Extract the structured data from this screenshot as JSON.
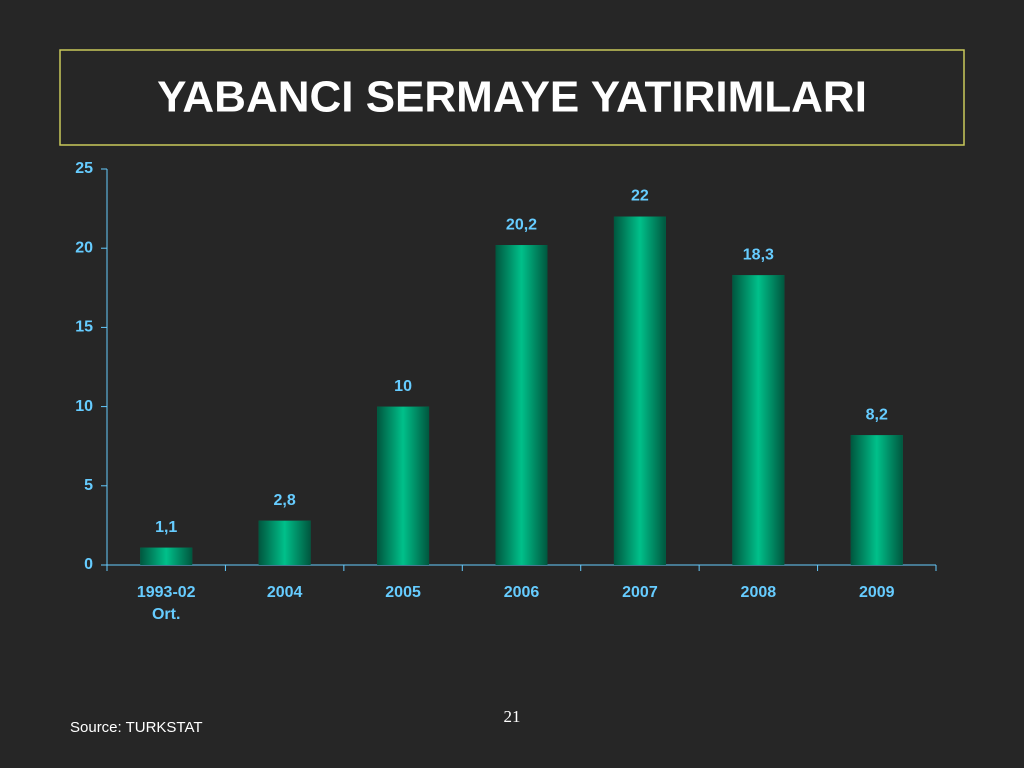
{
  "chart_data": {
    "type": "bar",
    "title": "YABANCI SERMAYE YATIRIMLARI",
    "categories": [
      "1993-02\nOrt.",
      "2004",
      "2005",
      "2006",
      "2007",
      "2008",
      "2009"
    ],
    "values": [
      1.1,
      2.8,
      10,
      20.2,
      22,
      18.3,
      8.2
    ],
    "value_labels": [
      "1,1",
      "2,8",
      "10",
      "20,2",
      "22",
      "18,3",
      "8,2"
    ],
    "color": "#00c08a",
    "ylim": [
      0,
      25
    ],
    "yticks": [
      0,
      5,
      10,
      15,
      20,
      25
    ],
    "grid": false,
    "source": "Source: TURKSTAT"
  },
  "page_number": "21"
}
